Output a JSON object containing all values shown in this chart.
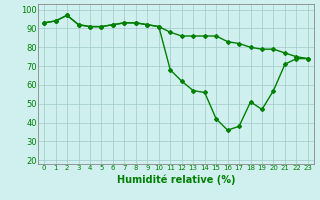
{
  "x": [
    0,
    1,
    2,
    3,
    4,
    5,
    6,
    7,
    8,
    9,
    10,
    11,
    12,
    13,
    14,
    15,
    16,
    17,
    18,
    19,
    20,
    21,
    22,
    23
  ],
  "line1": [
    93,
    94,
    97,
    92,
    91,
    91,
    92,
    93,
    93,
    92,
    91,
    88,
    86,
    86,
    86,
    86,
    83,
    82,
    80,
    79,
    79,
    77,
    75,
    74
  ],
  "line2": [
    93,
    94,
    97,
    92,
    91,
    91,
    92,
    93,
    93,
    92,
    91,
    68,
    62,
    57,
    56,
    42,
    36,
    38,
    51,
    47,
    57,
    71,
    74,
    74
  ],
  "line_color": "#008000",
  "marker": "D",
  "markersize": 2,
  "linewidth": 1.0,
  "xlabel": "Humidité relative (%)",
  "xlabel_color": "#008000",
  "xlabel_fontsize": 7,
  "bg_color": "#d0f0f0",
  "grid_color": "#a0c8c8",
  "yticks": [
    20,
    30,
    40,
    50,
    60,
    70,
    80,
    90,
    100
  ],
  "ylim": [
    18,
    103
  ],
  "xlim": [
    -0.5,
    23.5
  ],
  "tick_fontsize": 5,
  "ytick_fontsize": 6
}
